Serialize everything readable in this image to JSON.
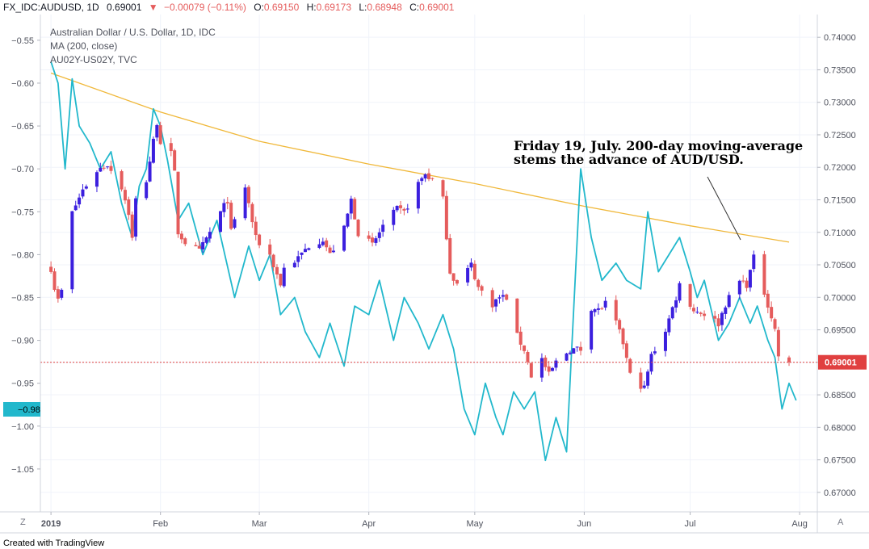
{
  "header": {
    "symbol": "FX_IDC:AUDUSD, 1D",
    "last": "0.69001",
    "change": "−0.00079 (−0.11%)",
    "ohlc": [
      {
        "label": "O:",
        "value": "0.69150"
      },
      {
        "label": "H:",
        "value": "0.69173"
      },
      {
        "label": "L:",
        "value": "0.68948"
      },
      {
        "label": "C:",
        "value": "0.69001"
      }
    ]
  },
  "legend": [
    "Australian Dollar / U.S. Dollar, 1D, IDC",
    "MA (200, close)",
    "AU02Y-US02Y, TVC"
  ],
  "annotation": [
    "Friday 19, July. 200-day moving-average",
    "stems the advance of AUD/USD."
  ],
  "badges": {
    "left_value": "−0.98",
    "right_value": "0.69001",
    "corner_left": "Z",
    "corner_right": "A"
  },
  "footer": "Created with TradingView",
  "colors": {
    "up": "#3b1fde",
    "down": "#e55c5c",
    "spread": "#22b8cc",
    "ma": "#f0b83a",
    "last_line": "#e04040",
    "grid": "#f0f3fa"
  },
  "chart_data": {
    "type": "candlestick",
    "title": "Australian Dollar / U.S. Dollar, 1D, IDC",
    "x_tick_labels": [
      {
        "date": "2019-01-01",
        "label": "2019"
      },
      {
        "date": "2019-02-01",
        "label": "Feb"
      },
      {
        "date": "2019-03-01",
        "label": "Mar"
      },
      {
        "date": "2019-04-01",
        "label": "Apr"
      },
      {
        "date": "2019-05-01",
        "label": "May"
      },
      {
        "date": "2019-06-01",
        "label": "Jun"
      },
      {
        "date": "2019-07-01",
        "label": "Jul"
      },
      {
        "date": "2019-08-01",
        "label": "Aug"
      }
    ],
    "x_range": [
      "2018-12-29",
      "2019-08-06"
    ],
    "right_axis": {
      "label": "AUD/USD",
      "range": [
        0.667,
        0.7435
      ],
      "ticks": [
        "0.74000",
        "0.73500",
        "0.73000",
        "0.72500",
        "0.72000",
        "0.71500",
        "0.71000",
        "0.70500",
        "0.70000",
        "0.69500",
        "0.69000",
        "0.68500",
        "0.68000",
        "0.67500",
        "0.67000"
      ]
    },
    "left_axis": {
      "label": "AU02Y-US02Y",
      "range": [
        -1.1,
        -0.52
      ],
      "ticks": [
        "−0.55",
        "−0.60",
        "−0.65",
        "−0.70",
        "−0.75",
        "−0.80",
        "−0.85",
        "−0.90",
        "−0.95",
        "−1.00",
        "−1.05"
      ]
    },
    "last_close": 0.69001,
    "price_anchors": [
      {
        "date": "2019-01-01",
        "close": 0.7045
      },
      {
        "date": "2019-01-02",
        "close": 0.7015
      },
      {
        "date": "2019-01-03",
        "close": 0.6995
      },
      {
        "date": "2019-01-04",
        "close": 0.701
      },
      {
        "date": "2019-01-07",
        "close": 0.713
      },
      {
        "date": "2019-01-10",
        "close": 0.7165
      },
      {
        "date": "2019-01-14",
        "close": 0.7195
      },
      {
        "date": "2019-01-17",
        "close": 0.7205
      },
      {
        "date": "2019-01-21",
        "close": 0.717
      },
      {
        "date": "2019-01-23",
        "close": 0.713
      },
      {
        "date": "2019-01-24",
        "close": 0.709
      },
      {
        "date": "2019-01-25",
        "close": 0.715
      },
      {
        "date": "2019-01-28",
        "close": 0.718
      },
      {
        "date": "2019-01-30",
        "close": 0.724
      },
      {
        "date": "2019-01-31",
        "close": 0.727
      },
      {
        "date": "2019-02-01",
        "close": 0.724
      },
      {
        "date": "2019-02-04",
        "close": 0.722
      },
      {
        "date": "2019-02-05",
        "close": 0.719
      },
      {
        "date": "2019-02-06",
        "close": 0.71
      },
      {
        "date": "2019-02-08",
        "close": 0.7085
      },
      {
        "date": "2019-02-12",
        "close": 0.707
      },
      {
        "date": "2019-02-15",
        "close": 0.71
      },
      {
        "date": "2019-02-20",
        "close": 0.715
      },
      {
        "date": "2019-02-21",
        "close": 0.71
      },
      {
        "date": "2019-02-25",
        "close": 0.717
      },
      {
        "date": "2019-02-28",
        "close": 0.709
      },
      {
        "date": "2019-03-04",
        "close": 0.7065
      },
      {
        "date": "2019-03-07",
        "close": 0.702
      },
      {
        "date": "2019-03-08",
        "close": 0.7045
      },
      {
        "date": "2019-03-12",
        "close": 0.706
      },
      {
        "date": "2019-03-15",
        "close": 0.708
      },
      {
        "date": "2019-03-19",
        "close": 0.709
      },
      {
        "date": "2019-03-21",
        "close": 0.7065
      },
      {
        "date": "2019-03-25",
        "close": 0.7105
      },
      {
        "date": "2019-03-27",
        "close": 0.715
      },
      {
        "date": "2019-03-29",
        "close": 0.71
      },
      {
        "date": "2019-04-02",
        "close": 0.708
      },
      {
        "date": "2019-04-05",
        "close": 0.711
      },
      {
        "date": "2019-04-09",
        "close": 0.7135
      },
      {
        "date": "2019-04-11",
        "close": 0.713
      },
      {
        "date": "2019-04-15",
        "close": 0.7175
      },
      {
        "date": "2019-04-17",
        "close": 0.719
      },
      {
        "date": "2019-04-19",
        "close": 0.718
      },
      {
        "date": "2019-04-22",
        "close": 0.715
      },
      {
        "date": "2019-04-24",
        "close": 0.704
      },
      {
        "date": "2019-04-26",
        "close": 0.702
      },
      {
        "date": "2019-04-30",
        "close": 0.705
      },
      {
        "date": "2019-05-02",
        "close": 0.7015
      },
      {
        "date": "2019-05-06",
        "close": 0.699
      },
      {
        "date": "2019-05-08",
        "close": 0.7
      },
      {
        "date": "2019-05-10",
        "close": 0.7
      },
      {
        "date": "2019-05-13",
        "close": 0.694
      },
      {
        "date": "2019-05-15",
        "close": 0.692
      },
      {
        "date": "2019-05-17",
        "close": 0.688
      },
      {
        "date": "2019-05-20",
        "close": 0.6905
      },
      {
        "date": "2019-05-22",
        "close": 0.688
      },
      {
        "date": "2019-05-24",
        "close": 0.69
      },
      {
        "date": "2019-05-28",
        "close": 0.692
      },
      {
        "date": "2019-05-31",
        "close": 0.692
      },
      {
        "date": "2019-06-03",
        "close": 0.6985
      },
      {
        "date": "2019-06-05",
        "close": 0.698
      },
      {
        "date": "2019-06-07",
        "close": 0.699
      },
      {
        "date": "2019-06-10",
        "close": 0.696
      },
      {
        "date": "2019-06-12",
        "close": 0.693
      },
      {
        "date": "2019-06-14",
        "close": 0.688
      },
      {
        "date": "2019-06-18",
        "close": 0.686
      },
      {
        "date": "2019-06-20",
        "close": 0.691
      },
      {
        "date": "2019-06-24",
        "close": 0.695
      },
      {
        "date": "2019-06-27",
        "close": 0.7
      },
      {
        "date": "2019-06-28",
        "close": 0.702
      },
      {
        "date": "2019-07-02",
        "close": 0.698
      },
      {
        "date": "2019-07-05",
        "close": 0.6975
      },
      {
        "date": "2019-07-09",
        "close": 0.696
      },
      {
        "date": "2019-07-11",
        "close": 0.699
      },
      {
        "date": "2019-07-15",
        "close": 0.7025
      },
      {
        "date": "2019-07-17",
        "close": 0.702
      },
      {
        "date": "2019-07-19",
        "close": 0.706
      },
      {
        "date": "2019-07-23",
        "close": 0.699
      },
      {
        "date": "2019-07-25",
        "close": 0.695
      },
      {
        "date": "2019-07-26",
        "close": 0.691
      },
      {
        "date": "2019-07-29",
        "close": 0.69
      }
    ],
    "ma_200": [
      {
        "date": "2019-01-01",
        "value": 0.7345
      },
      {
        "date": "2019-02-01",
        "value": 0.7285
      },
      {
        "date": "2019-03-01",
        "value": 0.724
      },
      {
        "date": "2019-04-01",
        "value": 0.7205
      },
      {
        "date": "2019-05-01",
        "value": 0.7175
      },
      {
        "date": "2019-06-01",
        "value": 0.714
      },
      {
        "date": "2019-07-01",
        "value": 0.711
      },
      {
        "date": "2019-07-29",
        "value": 0.7085
      }
    ],
    "spread_au02y_us02y": [
      {
        "date": "2019-01-01",
        "value": -0.575
      },
      {
        "date": "2019-01-03",
        "value": -0.6
      },
      {
        "date": "2019-01-05",
        "value": -0.7
      },
      {
        "date": "2019-01-07",
        "value": -0.595
      },
      {
        "date": "2019-01-09",
        "value": -0.65
      },
      {
        "date": "2019-01-12",
        "value": -0.67
      },
      {
        "date": "2019-01-15",
        "value": -0.7
      },
      {
        "date": "2019-01-18",
        "value": -0.68
      },
      {
        "date": "2019-01-21",
        "value": -0.74
      },
      {
        "date": "2019-01-24",
        "value": -0.78
      },
      {
        "date": "2019-01-26",
        "value": -0.72
      },
      {
        "date": "2019-01-28",
        "value": -0.7
      },
      {
        "date": "2019-01-30",
        "value": -0.63
      },
      {
        "date": "2019-02-01",
        "value": -0.65
      },
      {
        "date": "2019-02-03",
        "value": -0.69
      },
      {
        "date": "2019-02-06",
        "value": -0.76
      },
      {
        "date": "2019-02-09",
        "value": -0.74
      },
      {
        "date": "2019-02-13",
        "value": -0.8
      },
      {
        "date": "2019-02-17",
        "value": -0.76
      },
      {
        "date": "2019-02-22",
        "value": -0.85
      },
      {
        "date": "2019-02-26",
        "value": -0.79
      },
      {
        "date": "2019-03-01",
        "value": -0.83
      },
      {
        "date": "2019-03-04",
        "value": -0.8
      },
      {
        "date": "2019-03-07",
        "value": -0.87
      },
      {
        "date": "2019-03-11",
        "value": -0.85
      },
      {
        "date": "2019-03-14",
        "value": -0.89
      },
      {
        "date": "2019-03-18",
        "value": -0.92
      },
      {
        "date": "2019-03-21",
        "value": -0.88
      },
      {
        "date": "2019-03-25",
        "value": -0.93
      },
      {
        "date": "2019-03-28",
        "value": -0.86
      },
      {
        "date": "2019-04-01",
        "value": -0.87
      },
      {
        "date": "2019-04-04",
        "value": -0.83
      },
      {
        "date": "2019-04-08",
        "value": -0.9
      },
      {
        "date": "2019-04-11",
        "value": -0.85
      },
      {
        "date": "2019-04-15",
        "value": -0.88
      },
      {
        "date": "2019-04-18",
        "value": -0.91
      },
      {
        "date": "2019-04-22",
        "value": -0.87
      },
      {
        "date": "2019-04-25",
        "value": -0.91
      },
      {
        "date": "2019-04-28",
        "value": -0.98
      },
      {
        "date": "2019-05-01",
        "value": -1.01
      },
      {
        "date": "2019-05-04",
        "value": -0.95
      },
      {
        "date": "2019-05-07",
        "value": -0.99
      },
      {
        "date": "2019-05-09",
        "value": -1.01
      },
      {
        "date": "2019-05-12",
        "value": -0.96
      },
      {
        "date": "2019-05-15",
        "value": -0.98
      },
      {
        "date": "2019-05-18",
        "value": -0.96
      },
      {
        "date": "2019-05-21",
        "value": -1.04
      },
      {
        "date": "2019-05-24",
        "value": -0.99
      },
      {
        "date": "2019-05-27",
        "value": -1.03
      },
      {
        "date": "2019-05-31",
        "value": -0.7
      },
      {
        "date": "2019-06-03",
        "value": -0.78
      },
      {
        "date": "2019-06-06",
        "value": -0.83
      },
      {
        "date": "2019-06-10",
        "value": -0.81
      },
      {
        "date": "2019-06-13",
        "value": -0.83
      },
      {
        "date": "2019-06-17",
        "value": -0.84
      },
      {
        "date": "2019-06-19",
        "value": -0.75
      },
      {
        "date": "2019-06-22",
        "value": -0.82
      },
      {
        "date": "2019-06-25",
        "value": -0.8
      },
      {
        "date": "2019-06-28",
        "value": -0.78
      },
      {
        "date": "2019-07-01",
        "value": -0.82
      },
      {
        "date": "2019-07-03",
        "value": -0.85
      },
      {
        "date": "2019-07-05",
        "value": -0.83
      },
      {
        "date": "2019-07-09",
        "value": -0.9
      },
      {
        "date": "2019-07-12",
        "value": -0.88
      },
      {
        "date": "2019-07-15",
        "value": -0.85
      },
      {
        "date": "2019-07-18",
        "value": -0.88
      },
      {
        "date": "2019-07-20",
        "value": -0.86
      },
      {
        "date": "2019-07-23",
        "value": -0.9
      },
      {
        "date": "2019-07-25",
        "value": -0.92
      },
      {
        "date": "2019-07-27",
        "value": -0.98
      },
      {
        "date": "2019-07-29",
        "value": -0.95
      },
      {
        "date": "2019-07-31",
        "value": -0.97
      }
    ]
  }
}
